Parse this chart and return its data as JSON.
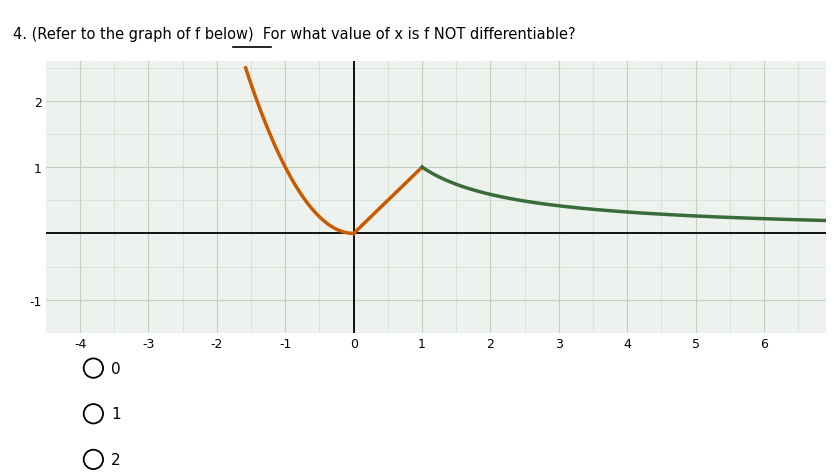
{
  "title_text": "4. (Refer to the graph of f below)  For what value of x is f NOT differentiable?",
  "xlim": [
    -4.5,
    6.9
  ],
  "ylim": [
    -1.5,
    2.6
  ],
  "xticks": [
    -4,
    -3,
    -2,
    -1,
    0,
    1,
    2,
    3,
    4,
    5,
    6
  ],
  "yticks": [
    -1,
    1,
    2
  ],
  "orange_color": "#C85A00",
  "green_color": "#3a6b3a",
  "bg_color": "#eef2ee",
  "grid_minor_color": "#d0ddd0",
  "grid_major_color": "#c0d0c0",
  "answer_choices": [
    "0",
    "1",
    "2"
  ],
  "fig_width": 8.34,
  "fig_height": 4.77
}
